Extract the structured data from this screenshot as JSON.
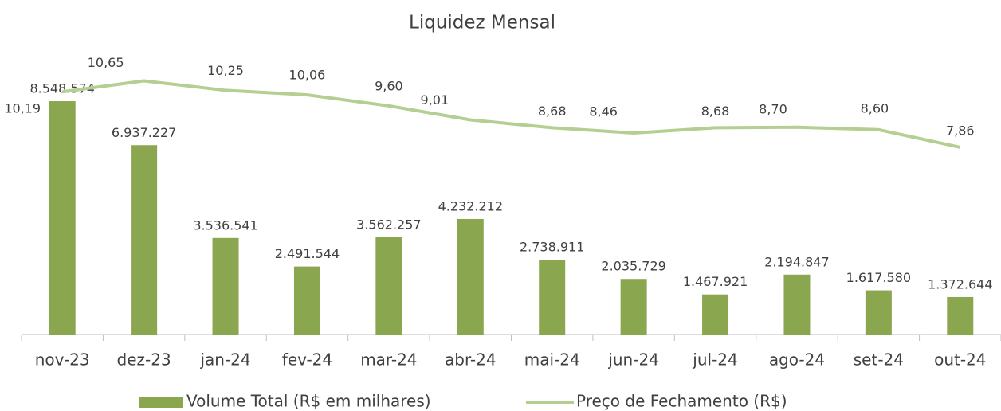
{
  "chart_data": {
    "type": "bar+line",
    "title": "Liquidez Mensal",
    "categories": [
      "nov-23",
      "dez-23",
      "jan-24",
      "fev-24",
      "mar-24",
      "abr-24",
      "mai-24",
      "jun-24",
      "jul-24",
      "ago-24",
      "set-24",
      "out-24"
    ],
    "series": [
      {
        "name": "Volume Total (R$ em milhares)",
        "type": "bar",
        "color": "#8aa64e",
        "values": [
          8548574,
          6937227,
          3536541,
          2491544,
          3562257,
          4232212,
          2738911,
          2035729,
          1467921,
          2194847,
          1617580,
          1372644
        ],
        "value_labels": [
          "8.548.574",
          "6.937.227",
          "3.536.541",
          "2.491.544",
          "3.562.257",
          "4.232.212",
          "2.738.911",
          "2.035.729",
          "1.467.921",
          "2.194.847",
          "1.617.580",
          "1.372.644"
        ]
      },
      {
        "name": "Preço de Fechamento (R$)",
        "type": "line",
        "axis": "y2",
        "color": "#b5cf93",
        "values": [
          10.19,
          10.65,
          10.25,
          10.06,
          9.6,
          9.01,
          8.68,
          8.46,
          8.68,
          8.7,
          8.6,
          7.86
        ],
        "value_labels": [
          "10,19",
          "10,65",
          "10,25",
          "10,06",
          "9,60",
          "9,01",
          "8,68",
          "8,46",
          "8,68",
          "8,70",
          "8,60",
          "7,86"
        ]
      }
    ],
    "ylim": [
      0,
      9600000
    ],
    "y2lim": [
      0,
      11
    ]
  }
}
